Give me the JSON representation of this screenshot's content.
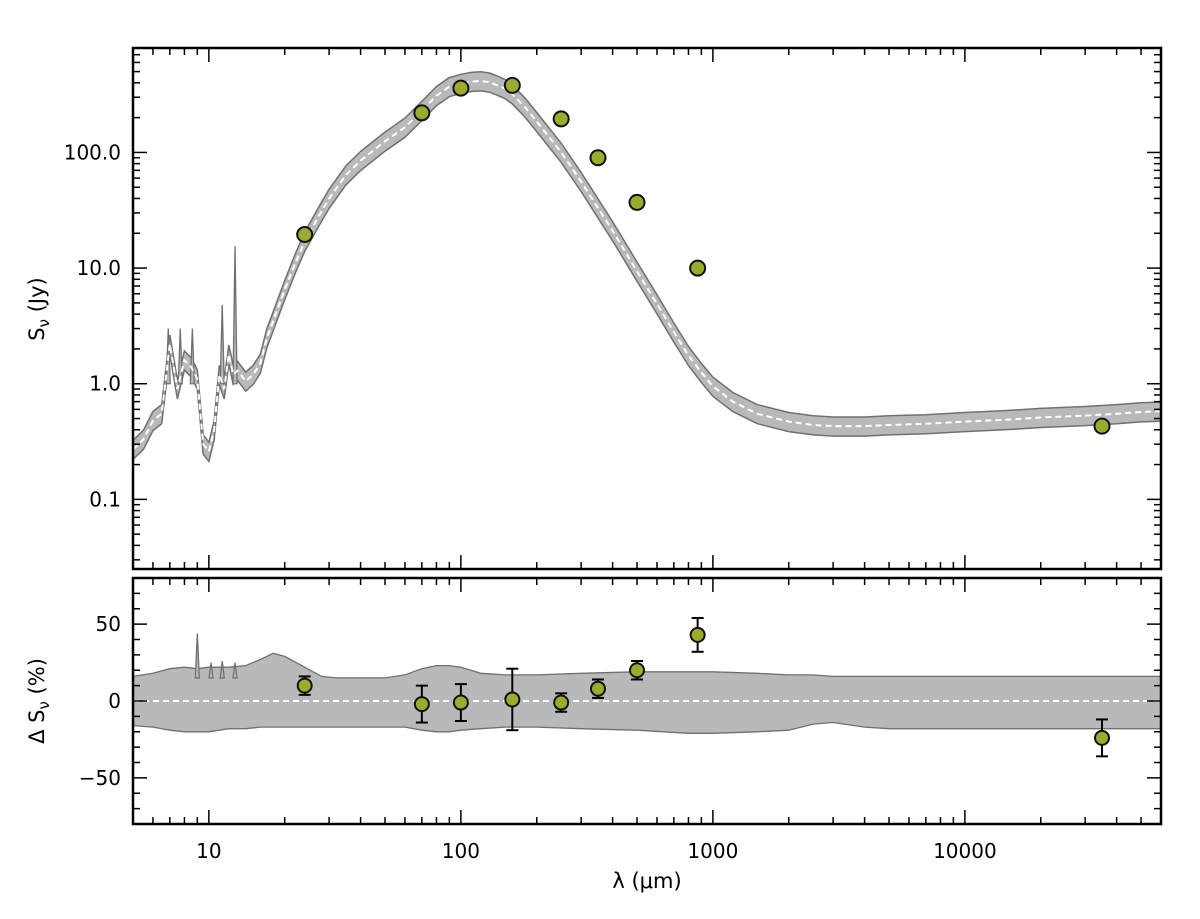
{
  "chart_data": [
    {
      "type": "scatter",
      "panel": "top",
      "ylabel": "S_ν (Jy)",
      "ylabel_main": "S",
      "ylabel_sub": "ν",
      "ylabel_unit": " (Jy)",
      "xscale": "log",
      "yscale": "log",
      "xlim": [
        5,
        60000
      ],
      "ylim": [
        0.025,
        800
      ],
      "x_ticks": [
        10,
        100,
        1000,
        10000
      ],
      "x_tick_labels": [
        "10",
        "100",
        "1000",
        "10000"
      ],
      "y_ticks": [
        0.1,
        1,
        10,
        100
      ],
      "y_tick_labels": [
        "0.1",
        "1.0",
        "10.0",
        "100.0"
      ],
      "model": {
        "x": [
          5,
          5.5,
          6,
          6.5,
          7,
          7.5,
          8,
          8.5,
          9,
          9.5,
          10,
          10.5,
          11,
          11.5,
          12,
          12.5,
          13,
          14,
          15,
          16,
          17,
          18,
          20,
          22,
          24,
          27,
          30,
          35,
          40,
          50,
          60,
          70,
          80,
          90,
          100,
          110,
          120,
          130,
          140,
          150,
          160,
          180,
          200,
          250,
          300,
          400,
          500,
          600,
          700,
          800,
          900,
          1000,
          1200,
          1500,
          2000,
          2500,
          3000,
          4000,
          5000,
          7000,
          10000,
          15000,
          20000,
          30000,
          40000,
          50000,
          60000
        ],
        "y": [
          0.27,
          0.33,
          0.48,
          0.55,
          2.2,
          0.9,
          1.6,
          1.4,
          1.1,
          0.3,
          0.26,
          0.4,
          1.2,
          0.9,
          1.8,
          1.2,
          1.3,
          1.05,
          1.2,
          1.5,
          2.5,
          3.5,
          6.5,
          11,
          17,
          27,
          40,
          64,
          85,
          125,
          165,
          230,
          310,
          370,
          395,
          410,
          415,
          405,
          380,
          355,
          320,
          245,
          185,
          100,
          56,
          21,
          9.4,
          4.9,
          2.8,
          1.75,
          1.25,
          0.95,
          0.7,
          0.55,
          0.47,
          0.44,
          0.43,
          0.43,
          0.44,
          0.45,
          0.47,
          0.49,
          0.51,
          0.53,
          0.55,
          0.57,
          0.58
        ],
        "band_low_factor": 0.82,
        "band_high_factor": 1.2,
        "spikes": [
          {
            "x": 6.9,
            "y": 3.0
          },
          {
            "x": 7.7,
            "y": 3.0
          },
          {
            "x": 8.6,
            "y": 3.0
          },
          {
            "x": 11.3,
            "y": 4.8
          },
          {
            "x": 12.7,
            "y": 15.5
          }
        ]
      },
      "points": {
        "x": [
          24,
          70,
          100,
          160,
          250,
          350,
          500,
          870,
          35000
        ],
        "y": [
          19.5,
          220,
          360,
          380,
          195,
          90,
          37,
          10,
          0.43
        ]
      }
    },
    {
      "type": "scatter",
      "panel": "bottom",
      "xlabel": "λ (μm)",
      "ylabel": "Δ S_ν (%)",
      "ylabel_main": "Δ S",
      "ylabel_sub": "ν",
      "ylabel_unit": " (%)",
      "xscale": "log",
      "xlim": [
        5,
        60000
      ],
      "ylim": [
        -80,
        80
      ],
      "y_ticks": [
        -50,
        0,
        50
      ],
      "y_tick_labels": [
        "−50",
        "0",
        "50"
      ],
      "band": {
        "x": [
          5,
          6,
          7,
          8,
          9,
          10,
          12,
          14,
          16,
          18,
          20,
          24,
          28,
          32,
          40,
          50,
          60,
          70,
          80,
          90,
          100,
          120,
          150,
          200,
          300,
          500,
          800,
          1000,
          1500,
          2000,
          2500,
          3000,
          4000,
          5000,
          7000,
          10000,
          20000,
          60000
        ],
        "upper": [
          16,
          18,
          21,
          22,
          21,
          22,
          22,
          23,
          27,
          31,
          29,
          22,
          16,
          15,
          15,
          15,
          17,
          21,
          23,
          23,
          22,
          18,
          17,
          17,
          18,
          19,
          19,
          19,
          18,
          17,
          17,
          16,
          16,
          16,
          16,
          16,
          16,
          16
        ],
        "lower": [
          -16,
          -17,
          -19,
          -20,
          -20,
          -20,
          -18,
          -18,
          -17,
          -17,
          -17,
          -17,
          -17,
          -17,
          -17,
          -17,
          -17,
          -19,
          -20,
          -20,
          -19,
          -18,
          -17,
          -17,
          -18,
          -19,
          -21,
          -21,
          -20,
          -19,
          -15,
          -14,
          -17,
          -18,
          -18,
          -18,
          -18,
          -18
        ]
      },
      "spikes": [
        {
          "x": 9.0,
          "y": 44
        },
        {
          "x": 10.2,
          "y": 25
        },
        {
          "x": 11.3,
          "y": 26
        },
        {
          "x": 12.7,
          "y": 25
        }
      ],
      "points": {
        "x": [
          24,
          70,
          100,
          160,
          250,
          350,
          500,
          870,
          35000
        ],
        "y": [
          10,
          -2,
          -1,
          1,
          -1,
          8,
          20,
          43,
          -24
        ],
        "err": [
          6,
          12,
          12,
          20,
          6,
          6,
          6,
          11,
          12
        ]
      }
    }
  ],
  "colors": {
    "band": "#b8b9bb",
    "band_edge": "#6f7072",
    "model_line": "#ffffff",
    "point_fill": "#9cab2d",
    "point_edge": "#111111"
  }
}
